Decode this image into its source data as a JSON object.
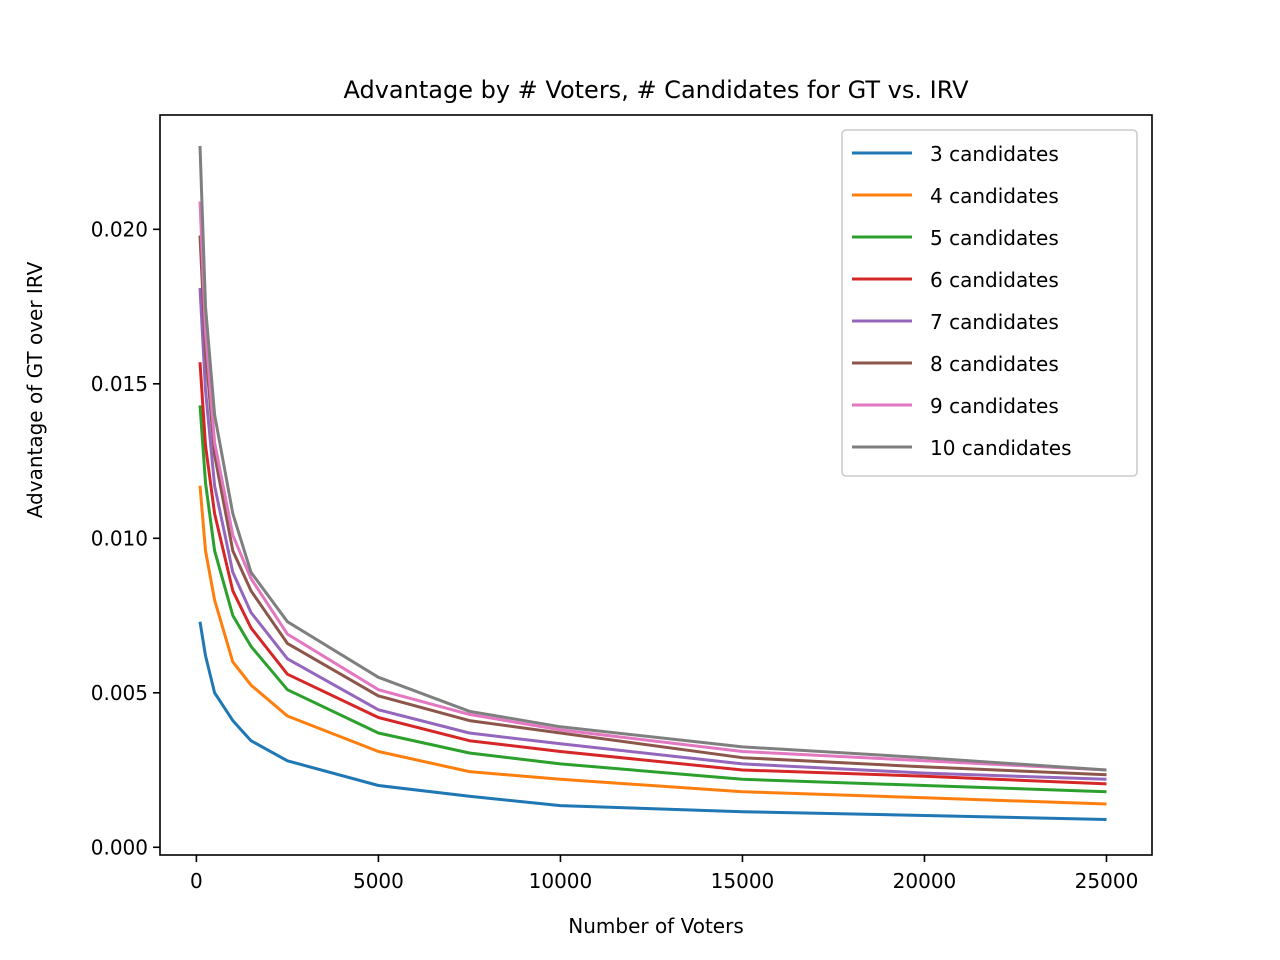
{
  "chart_data": {
    "type": "line",
    "title": "Advantage by # Voters, # Candidates for GT vs. IRV",
    "xlabel": "Number of Voters",
    "ylabel": "Advantage of GT over IRV",
    "xlim": [
      -1000,
      26250
    ],
    "ylim": [
      -0.00025,
      0.0237
    ],
    "xticks": [
      0,
      5000,
      10000,
      15000,
      20000,
      25000
    ],
    "xtick_labels": [
      "0",
      "5000",
      "10000",
      "15000",
      "20000",
      "25000"
    ],
    "yticks": [
      0.0,
      0.005,
      0.01,
      0.015,
      0.02
    ],
    "ytick_labels": [
      "0.000",
      "0.005",
      "0.010",
      "0.015",
      "0.020"
    ],
    "grid": false,
    "legend_position": "top-right",
    "x": [
      100,
      250,
      500,
      1000,
      1500,
      2500,
      5000,
      7500,
      10000,
      15000,
      20000,
      25000
    ],
    "series": [
      {
        "name": "3 candidates",
        "color": "#1f77b4",
        "values": [
          0.0073,
          0.0062,
          0.005,
          0.0041,
          0.00345,
          0.0028,
          0.002,
          0.00165,
          0.00135,
          0.00115,
          0.00103,
          0.0009
        ]
      },
      {
        "name": "4 candidates",
        "color": "#ff7f0e",
        "values": [
          0.0117,
          0.0096,
          0.008,
          0.006,
          0.00525,
          0.00425,
          0.0031,
          0.00245,
          0.0022,
          0.0018,
          0.0016,
          0.0014
        ]
      },
      {
        "name": "5 candidates",
        "color": "#2ca02c",
        "values": [
          0.0143,
          0.0118,
          0.0096,
          0.0075,
          0.0065,
          0.0051,
          0.0037,
          0.00305,
          0.0027,
          0.0022,
          0.002,
          0.0018
        ]
      },
      {
        "name": "6 candidates",
        "color": "#d62728",
        "values": [
          0.0157,
          0.013,
          0.0108,
          0.0083,
          0.0071,
          0.0056,
          0.0042,
          0.00345,
          0.0031,
          0.0025,
          0.0023,
          0.00205
        ]
      },
      {
        "name": "7 candidates",
        "color": "#9467bd",
        "values": [
          0.0181,
          0.0148,
          0.0117,
          0.0089,
          0.0076,
          0.0061,
          0.00445,
          0.0037,
          0.00335,
          0.0027,
          0.0024,
          0.0022
        ]
      },
      {
        "name": "8 candidates",
        "color": "#8c564b",
        "values": [
          0.0198,
          0.0161,
          0.0127,
          0.0096,
          0.0083,
          0.0066,
          0.0049,
          0.0041,
          0.0037,
          0.0029,
          0.0026,
          0.00235
        ]
      },
      {
        "name": "9 candidates",
        "color": "#e377c2",
        "values": [
          0.0209,
          0.0167,
          0.0131,
          0.0101,
          0.0087,
          0.0069,
          0.0051,
          0.0043,
          0.0038,
          0.0031,
          0.0028,
          0.0025
        ]
      },
      {
        "name": "10 candidates",
        "color": "#7f7f7f",
        "values": [
          0.0227,
          0.0175,
          0.014,
          0.0108,
          0.0089,
          0.0073,
          0.0055,
          0.0044,
          0.0039,
          0.00325,
          0.0029,
          0.0025
        ]
      }
    ]
  }
}
